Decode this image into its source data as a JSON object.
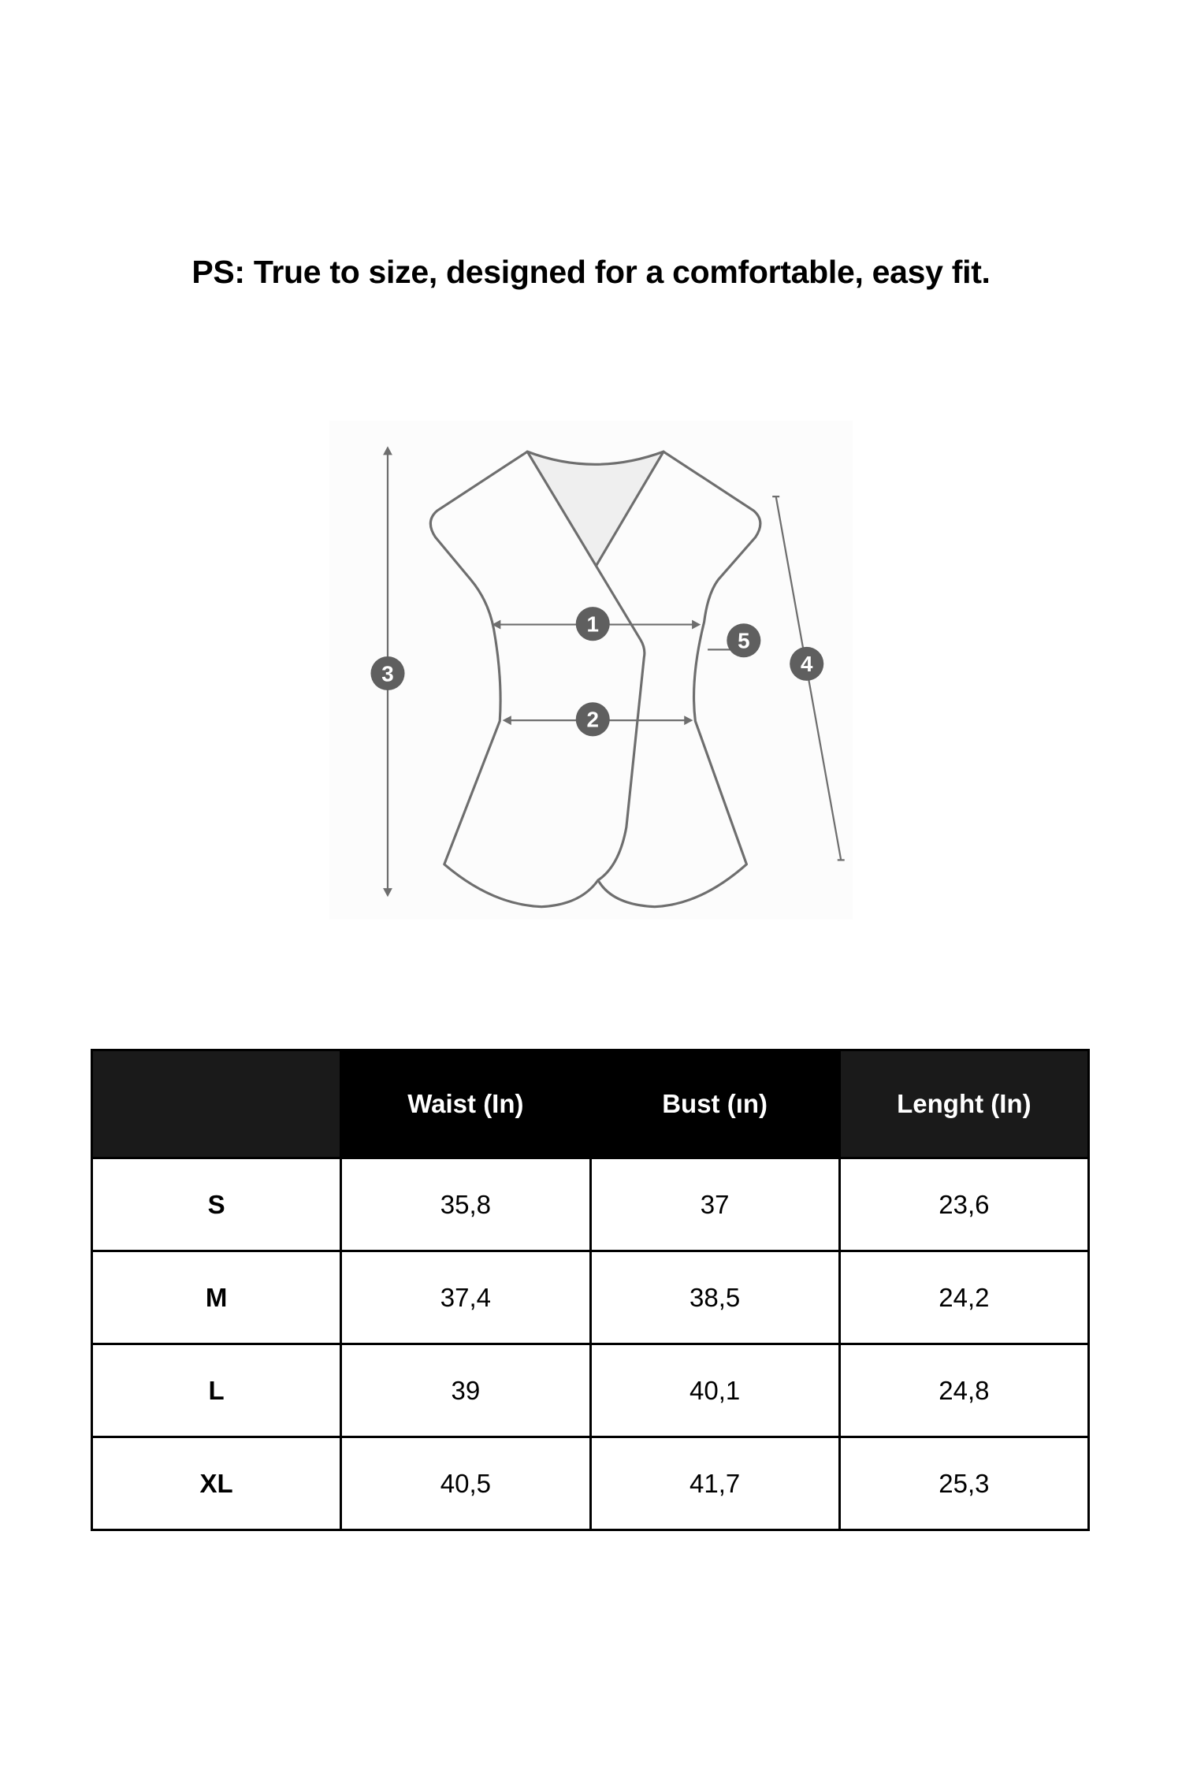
{
  "title": "PS: True to size, designed for a comfortable, easy fit.",
  "diagram": {
    "markers": [
      "1",
      "2",
      "3",
      "4",
      "5"
    ],
    "colors": {
      "line": "#6e6e6e",
      "marker": "#5f5f5f",
      "neck_fill": "#efefef"
    }
  },
  "table": {
    "headers": [
      "",
      "Waist (In)",
      "Bust (ın)",
      "Lenght (In)"
    ],
    "rows": [
      [
        "S",
        "35,8",
        "37",
        "23,6"
      ],
      [
        "M",
        "37,4",
        "38,5",
        "24,2"
      ],
      [
        "L",
        "39",
        "40,1",
        "24,8"
      ],
      [
        "XL",
        "40,5",
        "41,7",
        "25,3"
      ]
    ]
  }
}
